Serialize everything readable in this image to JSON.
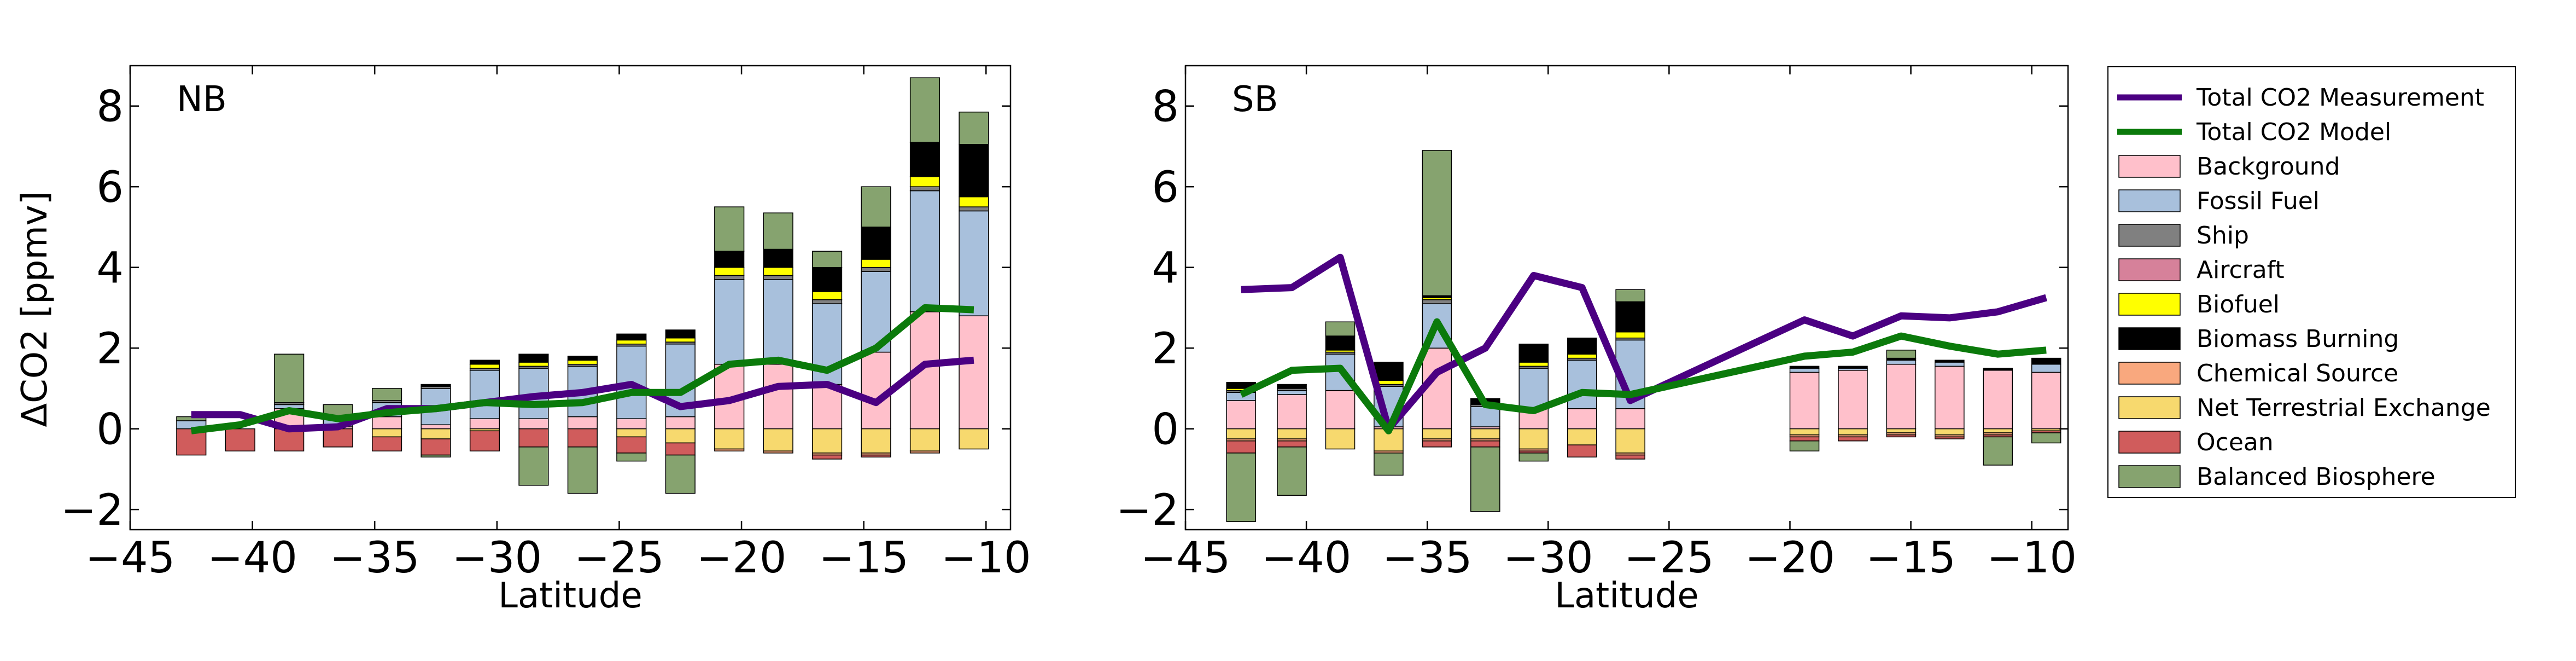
{
  "figure": {
    "y_axis_label": "ΔCO2 [ppmv]",
    "x_axis_label": "Latitude"
  },
  "legend": [
    {
      "name": "Total CO2 Measurement",
      "kind": "line",
      "color": "#4b0082"
    },
    {
      "name": "Total CO2 Model",
      "kind": "line",
      "color": "#0b7a0b"
    },
    {
      "name": "Background",
      "kind": "patch",
      "color": "#ffc0cb"
    },
    {
      "name": "Fossil Fuel",
      "kind": "patch",
      "color": "#a8c0dc"
    },
    {
      "name": "Ship",
      "kind": "patch",
      "color": "#808080"
    },
    {
      "name": "Aircraft",
      "kind": "patch",
      "color": "#d6819a"
    },
    {
      "name": "Biofuel",
      "kind": "patch",
      "color": "#ffff00"
    },
    {
      "name": "Biomass Burning",
      "kind": "patch",
      "color": "#000000"
    },
    {
      "name": "Chemical Source",
      "kind": "patch",
      "color": "#f9a87e"
    },
    {
      "name": "Net Terrestrial Exchange",
      "kind": "patch",
      "color": "#f7d96e"
    },
    {
      "name": "Ocean",
      "kind": "patch",
      "color": "#d05c5c"
    },
    {
      "name": "Balanced Biosphere",
      "kind": "patch",
      "color": "#86a36f"
    }
  ],
  "chart_data": [
    {
      "type": "bar",
      "panel_label": "NB",
      "xlim": [
        -45,
        -9
      ],
      "ylim": [
        -2.5,
        9
      ],
      "xticks": [
        -45,
        -40,
        -35,
        -30,
        -25,
        -20,
        -15,
        -10
      ],
      "yticks": [
        -2,
        0,
        2,
        4,
        6,
        8
      ],
      "x": [
        -42.5,
        -40.5,
        -38.5,
        -36.5,
        -34.5,
        -32.5,
        -30.5,
        -28.5,
        -26.5,
        -24.5,
        -22.5,
        -20.5,
        -18.5,
        -16.5,
        -14.5,
        -12.5,
        -10.5
      ],
      "positive_stack": {
        "Background": [
          0,
          0,
          0.5,
          0.05,
          0.3,
          0.1,
          0.25,
          0.25,
          0.3,
          0.25,
          0.3,
          1.6,
          1.6,
          1.1,
          1.9,
          2.9,
          2.8
        ],
        "Fossil Fuel": [
          0.2,
          0,
          0.1,
          0.25,
          0.35,
          0.9,
          1.2,
          1.25,
          1.25,
          1.8,
          1.8,
          2.1,
          2.1,
          2.0,
          2.0,
          3.0,
          2.6
        ],
        "Ship": [
          0,
          0,
          0.05,
          0,
          0.05,
          0.05,
          0.05,
          0.05,
          0.05,
          0.05,
          0.05,
          0.1,
          0.1,
          0.1,
          0.1,
          0.1,
          0.1
        ],
        "Aircraft": [
          0,
          0,
          0,
          0,
          0,
          0,
          0,
          0,
          0,
          0,
          0,
          0,
          0,
          0,
          0,
          0,
          0
        ],
        "Biofuel": [
          0,
          0,
          0,
          0,
          0,
          0,
          0.1,
          0.1,
          0.1,
          0.1,
          0.1,
          0.2,
          0.2,
          0.2,
          0.2,
          0.25,
          0.25
        ],
        "Biomass Burning": [
          0,
          0,
          0,
          0,
          0,
          0.05,
          0.1,
          0.2,
          0.1,
          0.15,
          0.2,
          0.4,
          0.45,
          0.6,
          0.8,
          0.85,
          1.3
        ],
        "Balanced Biosphere": [
          0.1,
          0,
          1.2,
          0.3,
          0.3,
          0,
          0,
          0,
          0,
          0,
          0,
          1.1,
          0.9,
          0.4,
          1.0,
          1.6,
          0.8
        ]
      },
      "negative_stack": {
        "Net Terrestrial Exchange": [
          0,
          0,
          0,
          0,
          -0.2,
          -0.25,
          -0.05,
          0,
          0,
          -0.2,
          -0.35,
          -0.5,
          -0.55,
          -0.6,
          -0.6,
          -0.55,
          -0.5
        ],
        "Chemical Source": [
          0,
          0,
          0,
          0,
          0,
          0,
          0,
          0,
          0,
          0,
          0,
          -0.05,
          -0.05,
          -0.05,
          -0.05,
          -0.05,
          0
        ],
        "Ocean": [
          -0.65,
          -0.55,
          -0.55,
          -0.45,
          -0.35,
          -0.4,
          -0.5,
          -0.45,
          -0.45,
          -0.4,
          -0.3,
          0,
          0,
          -0.1,
          -0.05,
          0,
          0
        ],
        "Balanced Biosphere": [
          0,
          0,
          0,
          0,
          0,
          -0.05,
          0,
          -0.95,
          -1.15,
          -0.2,
          -0.95,
          0,
          0,
          0,
          0,
          0,
          0
        ]
      },
      "lines": [
        {
          "name": "Total CO2 Measurement",
          "x": [
            -42.5,
            -40.5,
            -38.5,
            -36.5,
            -34.5,
            -32.5,
            -30.5,
            -28.5,
            -26.5,
            -24.5,
            -22.5,
            -20.5,
            -18.5,
            -16.5,
            -14.5,
            -12.5,
            -10.5
          ],
          "y": [
            0.35,
            0.35,
            0.0,
            0.05,
            0.5,
            0.5,
            0.65,
            0.8,
            0.9,
            1.1,
            0.55,
            0.7,
            1.05,
            1.1,
            0.65,
            1.6,
            1.7
          ]
        },
        {
          "name": "Total CO2 Model",
          "x": [
            -42.5,
            -40.5,
            -38.5,
            -36.5,
            -34.5,
            -32.5,
            -30.5,
            -28.5,
            -26.5,
            -24.5,
            -22.5,
            -20.5,
            -18.5,
            -16.5,
            -14.5,
            -12.5,
            -10.5
          ],
          "y": [
            -0.05,
            0.1,
            0.45,
            0.25,
            0.4,
            0.5,
            0.65,
            0.6,
            0.65,
            0.9,
            0.9,
            1.6,
            1.7,
            1.45,
            2.0,
            3.0,
            2.95
          ]
        }
      ]
    },
    {
      "type": "bar",
      "panel_label": "SB",
      "xlim": [
        -45,
        -8.5
      ],
      "ylim": [
        -2.5,
        9
      ],
      "xticks": [
        -45,
        -40,
        -35,
        -30,
        -25,
        -20,
        -15,
        -10
      ],
      "yticks": [
        -2,
        0,
        2,
        4,
        6,
        8
      ],
      "x": [
        -42.7,
        -40.6,
        -38.6,
        -36.6,
        -34.6,
        -32.6,
        -30.6,
        -28.6,
        -26.6,
        -19.4,
        -17.4,
        -15.4,
        -13.4,
        -11.4,
        -9.4
      ],
      "positive_stack": {
        "Background": [
          0.7,
          0.85,
          0.95,
          0.05,
          2.0,
          0.05,
          0.5,
          0.5,
          0.5,
          1.4,
          1.45,
          1.6,
          1.55,
          1.45,
          1.4
        ],
        "Fossil Fuel": [
          0.2,
          0.1,
          0.9,
          1.0,
          1.1,
          0.5,
          1.0,
          1.2,
          1.7,
          0.1,
          0.05,
          0.1,
          0.1,
          0,
          0.2
        ],
        "Ship": [
          0.05,
          0.05,
          0.05,
          0.05,
          0.1,
          0.05,
          0.05,
          0.05,
          0.05,
          0,
          0,
          0,
          0,
          0,
          0
        ],
        "Aircraft": [
          0,
          0,
          0,
          0,
          0,
          0,
          0,
          0,
          0,
          0,
          0,
          0,
          0,
          0,
          0
        ],
        "Biofuel": [
          0.05,
          0,
          0.05,
          0.1,
          0.05,
          0,
          0.1,
          0.1,
          0.15,
          0,
          0,
          0,
          0,
          0,
          0
        ],
        "Biomass Burning": [
          0.15,
          0.1,
          0.35,
          0.45,
          0.05,
          0.15,
          0.45,
          0.4,
          0.75,
          0.05,
          0.05,
          0.05,
          0.05,
          0.05,
          0.15
        ],
        "Balanced Biosphere": [
          0,
          0,
          0.35,
          0,
          3.6,
          0,
          0,
          0,
          0.3,
          0,
          0,
          0.2,
          0,
          0,
          0
        ]
      },
      "negative_stack": {
        "Net Terrestrial Exchange": [
          -0.25,
          -0.25,
          -0.5,
          -0.55,
          -0.25,
          -0.25,
          -0.5,
          -0.4,
          -0.6,
          -0.15,
          -0.15,
          -0.1,
          -0.15,
          -0.1,
          -0.05
        ],
        "Chemical Source": [
          -0.05,
          -0.05,
          0,
          -0.05,
          -0.05,
          -0.05,
          -0.05,
          0,
          -0.05,
          -0.05,
          -0.05,
          -0.05,
          -0.05,
          -0.05,
          0
        ],
        "Ocean": [
          -0.3,
          -0.15,
          0,
          0,
          -0.15,
          -0.15,
          -0.05,
          -0.3,
          -0.1,
          -0.1,
          -0.1,
          -0.05,
          -0.05,
          -0.05,
          -0.05
        ],
        "Balanced Biosphere": [
          -1.7,
          -1.2,
          0,
          -0.55,
          0,
          -1.6,
          -0.2,
          0,
          0,
          -0.25,
          0,
          0,
          0,
          -0.7,
          -0.25
        ]
      },
      "lines": [
        {
          "name": "Total CO2 Measurement",
          "x": [
            -42.7,
            -40.6,
            -38.6,
            -36.6,
            -34.6,
            -32.6,
            -30.6,
            -28.6,
            -26.6,
            -19.4,
            -17.4,
            -15.4,
            -13.4,
            -11.4,
            -9.4
          ],
          "y": [
            3.45,
            3.5,
            4.25,
            0.0,
            1.4,
            2.0,
            3.8,
            3.5,
            0.7,
            2.7,
            2.3,
            2.8,
            2.75,
            2.9,
            3.25
          ]
        },
        {
          "name": "Total CO2 Model",
          "x": [
            -42.7,
            -40.6,
            -38.6,
            -36.6,
            -34.6,
            -32.6,
            -30.6,
            -28.6,
            -26.6,
            -19.4,
            -17.4,
            -15.4,
            -13.4,
            -11.4,
            -9.4
          ],
          "y": [
            0.85,
            1.45,
            1.5,
            -0.05,
            2.65,
            0.6,
            0.45,
            0.9,
            0.85,
            1.8,
            1.9,
            2.3,
            2.05,
            1.85,
            1.95
          ]
        }
      ]
    }
  ]
}
